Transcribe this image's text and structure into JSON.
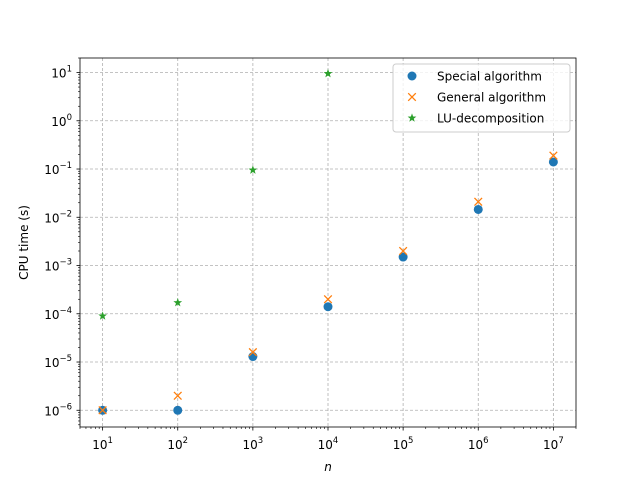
{
  "chart_data": {
    "type": "scatter",
    "title": "",
    "xlabel": "n",
    "ylabel": "CPU time (s)",
    "xscale": "log",
    "yscale": "log",
    "xlim": [
      5,
      20000000
    ],
    "ylim": [
      4.5e-07,
      20
    ],
    "grid": true,
    "legend_position": "top-right",
    "x_ticks": [
      {
        "value": 10,
        "base": "10",
        "exp": "1"
      },
      {
        "value": 100,
        "base": "10",
        "exp": "2"
      },
      {
        "value": 1000,
        "base": "10",
        "exp": "3"
      },
      {
        "value": 10000,
        "base": "10",
        "exp": "4"
      },
      {
        "value": 100000,
        "base": "10",
        "exp": "5"
      },
      {
        "value": 1000000,
        "base": "10",
        "exp": "6"
      },
      {
        "value": 10000000,
        "base": "10",
        "exp": "7"
      }
    ],
    "y_ticks": [
      {
        "value": 1e-06,
        "base": "10",
        "exp": "−6"
      },
      {
        "value": 1e-05,
        "base": "10",
        "exp": "−5"
      },
      {
        "value": 0.0001,
        "base": "10",
        "exp": "−4"
      },
      {
        "value": 0.001,
        "base": "10",
        "exp": "−3"
      },
      {
        "value": 0.01,
        "base": "10",
        "exp": "−2"
      },
      {
        "value": 0.1,
        "base": "10",
        "exp": "−1"
      },
      {
        "value": 1,
        "base": "10",
        "exp": "0"
      },
      {
        "value": 10,
        "base": "10",
        "exp": "1"
      }
    ],
    "series": [
      {
        "name": "Special algorithm",
        "marker": "circle",
        "color": "#1f77b4",
        "points": [
          [
            10,
            1e-06
          ],
          [
            100,
            1e-06
          ],
          [
            1000,
            1.3e-05
          ],
          [
            10000,
            0.00014
          ],
          [
            100000,
            0.0015
          ],
          [
            1000000,
            0.0145
          ],
          [
            10000000,
            0.14
          ]
        ]
      },
      {
        "name": "General algorithm",
        "marker": "x",
        "color": "#ff7f0e",
        "points": [
          [
            10,
            1e-06
          ],
          [
            100,
            2e-06
          ],
          [
            1000,
            1.6e-05
          ],
          [
            10000,
            0.0002
          ],
          [
            100000,
            0.002
          ],
          [
            1000000,
            0.021
          ],
          [
            10000000,
            0.19
          ]
        ]
      },
      {
        "name": "LU-decomposition",
        "marker": "star",
        "color": "#2ca02c",
        "points": [
          [
            10,
            9e-05
          ],
          [
            100,
            0.00017
          ],
          [
            1000,
            0.095
          ],
          [
            10000,
            9.5
          ]
        ]
      }
    ]
  }
}
